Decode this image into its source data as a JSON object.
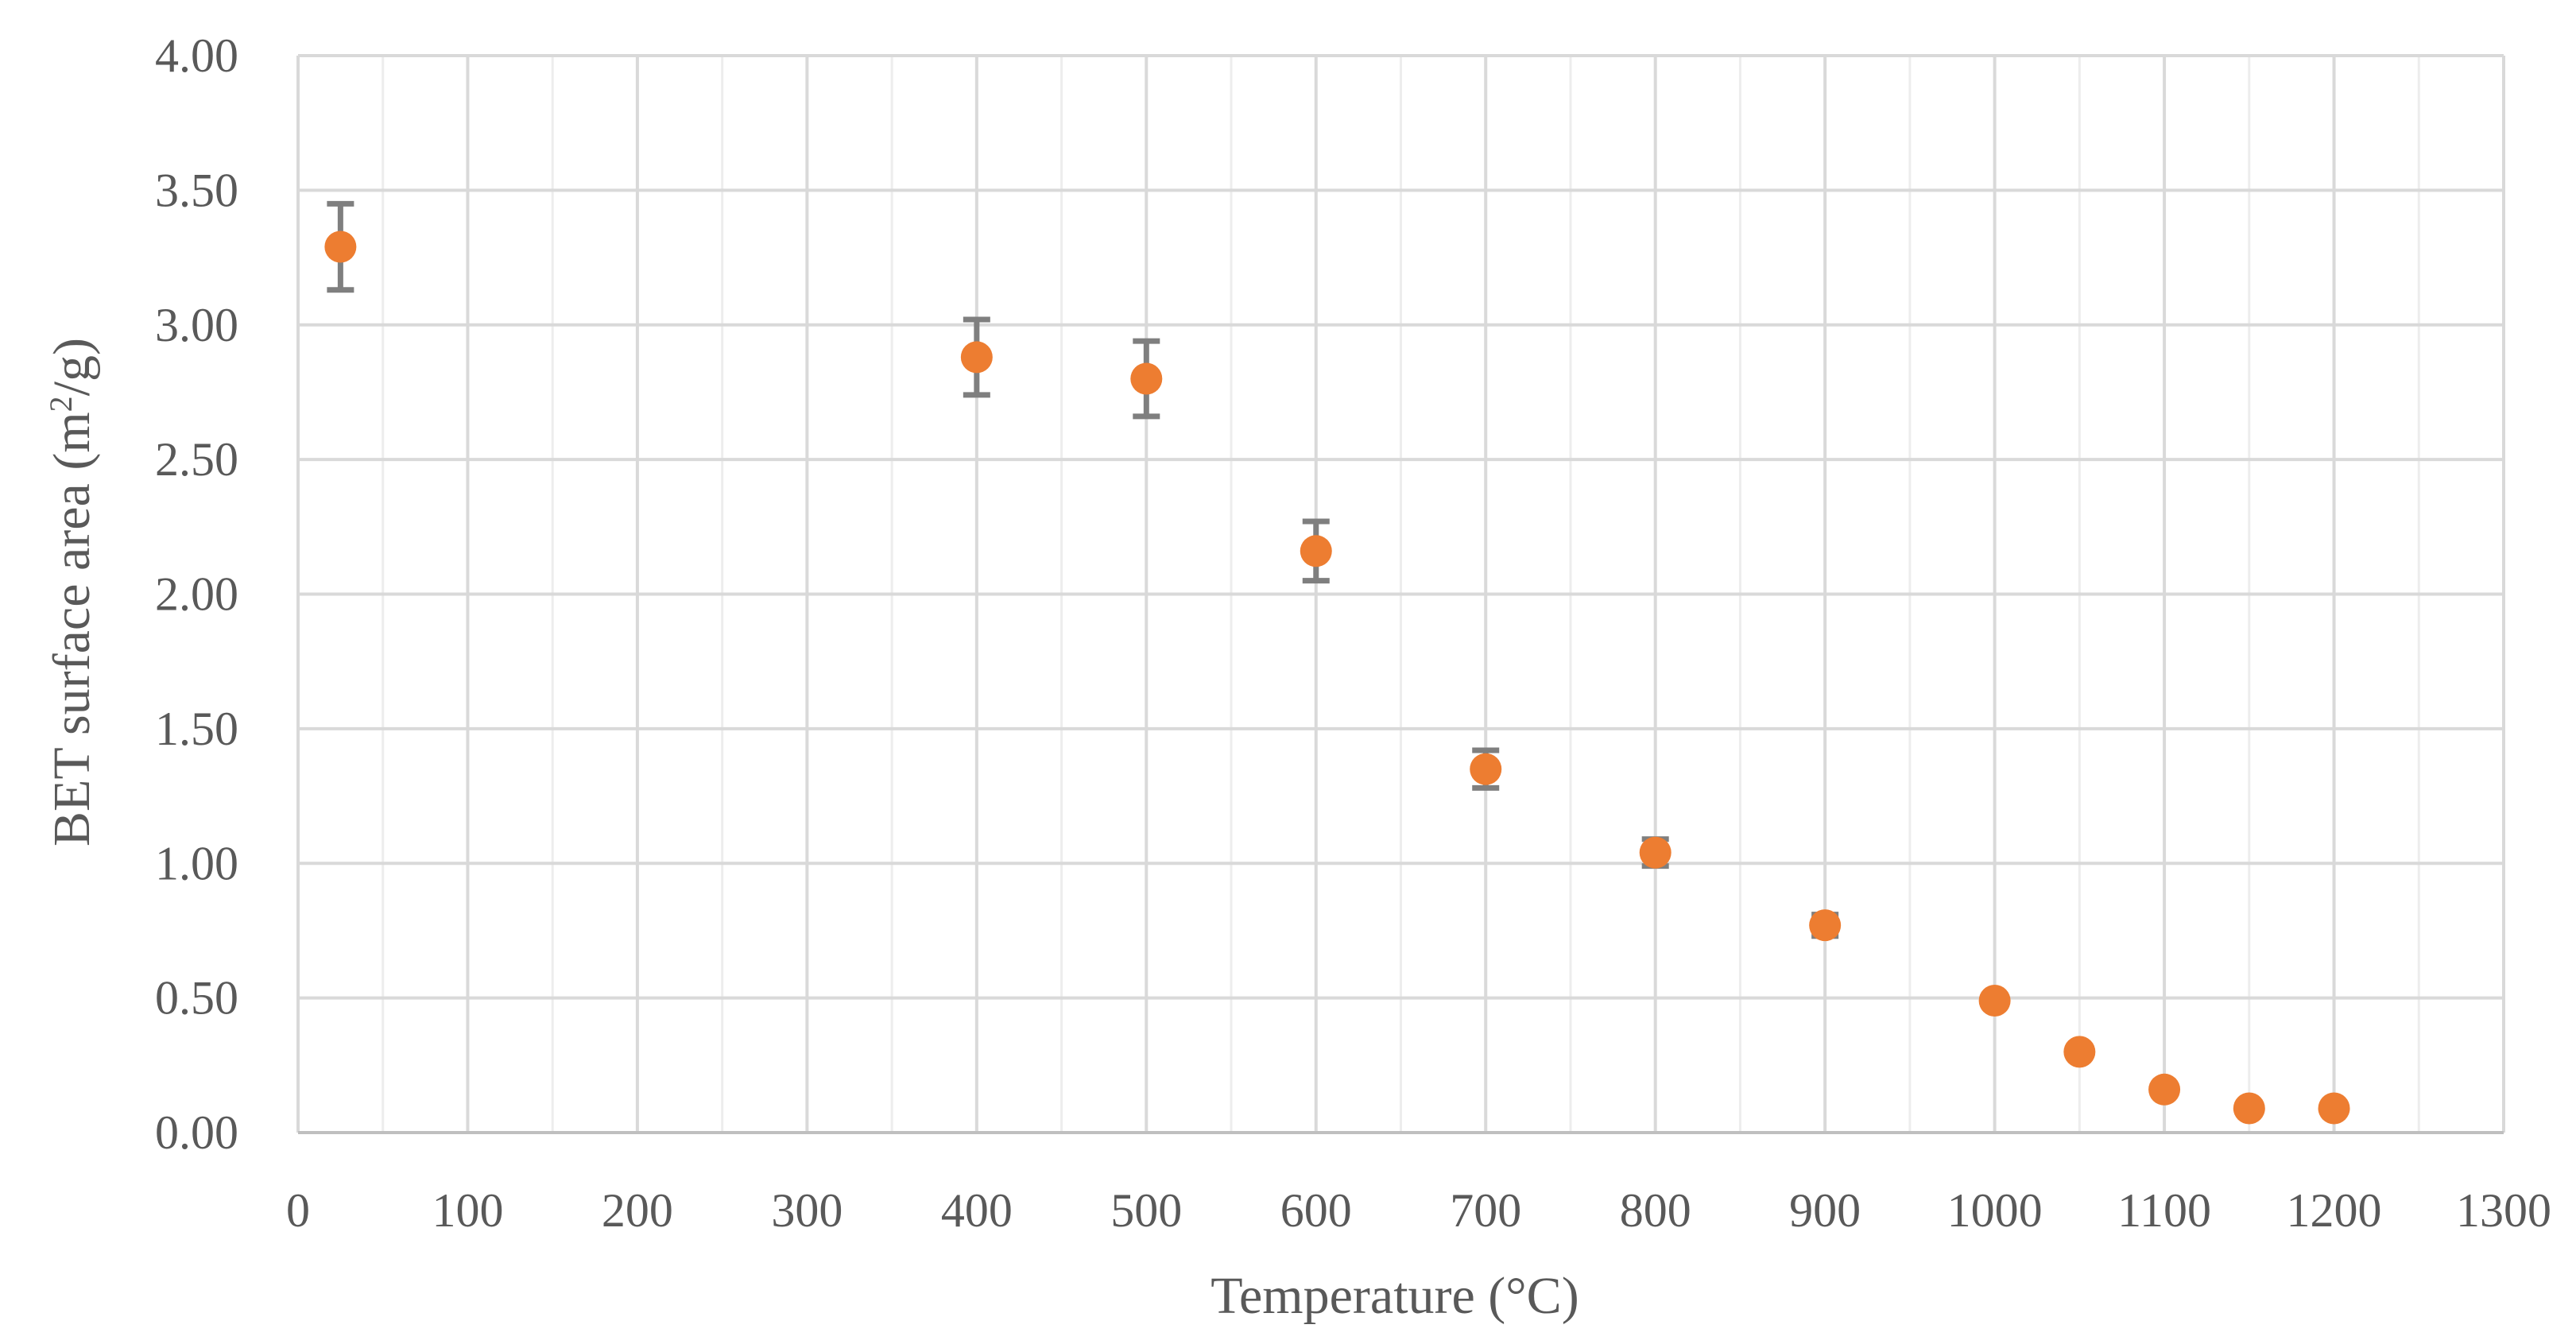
{
  "chart_data": {
    "type": "scatter",
    "title": "",
    "xlabel": "Temperature (°C)",
    "ylabel_main": "BET surface area (m",
    "ylabel_sup": "2",
    "ylabel_tail": "/g)",
    "xlim": [
      0,
      1300
    ],
    "ylim": [
      0,
      4
    ],
    "x_major_step": 100,
    "x_minor_step": 50,
    "y_major_step": 0.5,
    "x_ticks": [
      "0",
      "100",
      "200",
      "300",
      "400",
      "500",
      "600",
      "700",
      "800",
      "900",
      "1000",
      "1100",
      "1200",
      "1300"
    ],
    "y_ticks": [
      "0.00",
      "0.50",
      "1.00",
      "1.50",
      "2.00",
      "2.50",
      "3.00",
      "3.50",
      "4.00"
    ],
    "grid": true,
    "legend": "none",
    "marker_color": "#ED7D31",
    "error_bar_color": "#7F7F7F",
    "grid_color": "#D9D9D9",
    "points": [
      {
        "x": 25,
        "y": 3.29,
        "err": 0.16
      },
      {
        "x": 400,
        "y": 2.88,
        "err": 0.14
      },
      {
        "x": 500,
        "y": 2.8,
        "err": 0.14
      },
      {
        "x": 600,
        "y": 2.16,
        "err": 0.11
      },
      {
        "x": 700,
        "y": 1.35,
        "err": 0.07
      },
      {
        "x": 800,
        "y": 1.04,
        "err": 0.05
      },
      {
        "x": 900,
        "y": 0.77,
        "err": 0.04
      },
      {
        "x": 1000,
        "y": 0.49,
        "err": 0.02
      },
      {
        "x": 1050,
        "y": 0.3,
        "err": 0.0
      },
      {
        "x": 1100,
        "y": 0.16,
        "err": 0.0
      },
      {
        "x": 1150,
        "y": 0.09,
        "err": 0.0
      },
      {
        "x": 1200,
        "y": 0.09,
        "err": 0.0
      }
    ]
  }
}
